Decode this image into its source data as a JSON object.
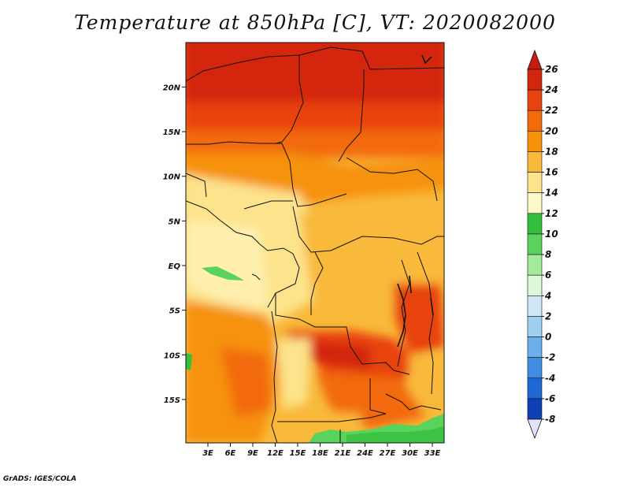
{
  "title": "Temperature at 850hPa [C], VT: 2020082000",
  "footer": "GrADS: IGES/COLA",
  "axes": {
    "lat_ticks": [
      {
        "value": 20,
        "label": "20N"
      },
      {
        "value": 15,
        "label": "15N"
      },
      {
        "value": 10,
        "label": "10N"
      },
      {
        "value": 5,
        "label": "5N"
      },
      {
        "value": 0,
        "label": "EQ"
      },
      {
        "value": -5,
        "label": "5S"
      },
      {
        "value": -10,
        "label": "10S"
      },
      {
        "value": -15,
        "label": "15S"
      }
    ],
    "lon_ticks": [
      {
        "value": 3,
        "label": "3E"
      },
      {
        "value": 6,
        "label": "6E"
      },
      {
        "value": 9,
        "label": "9E"
      },
      {
        "value": 12,
        "label": "12E"
      },
      {
        "value": 15,
        "label": "15E"
      },
      {
        "value": 18,
        "label": "18E"
      },
      {
        "value": 21,
        "label": "21E"
      },
      {
        "value": 24,
        "label": "24E"
      },
      {
        "value": 27,
        "label": "27E"
      },
      {
        "value": 30,
        "label": "30E"
      },
      {
        "value": 33,
        "label": "33E"
      }
    ]
  },
  "colorbar": {
    "labels": [
      "26",
      "24",
      "22",
      "20",
      "18",
      "16",
      "14",
      "12",
      "10",
      "8",
      "6",
      "4",
      "2",
      "0",
      "-2",
      "-4",
      "-6",
      "-8"
    ],
    "colors": [
      "#d3260f",
      "#e8430f",
      "#f26a0c",
      "#f6920a",
      "#f9b93a",
      "#fde38c",
      "#fff9c7",
      "#35bf3e",
      "#5ad35c",
      "#a3ea9a",
      "#dcf8d8",
      "#cfe7f7",
      "#9fd0f2",
      "#6ab0ec",
      "#3f8ee3",
      "#2067d6",
      "#0f3fb5",
      "#0a1f7a",
      "#050a4a"
    ],
    "top_color": "#c81d0e",
    "bottom_color": "#e2e2fb"
  }
}
